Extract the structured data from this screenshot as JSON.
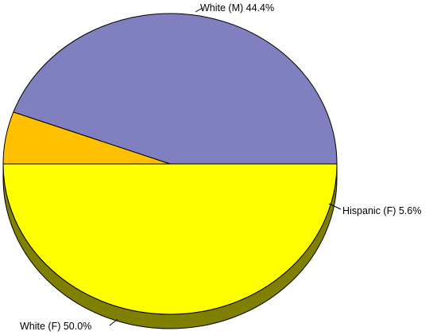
{
  "chart_data": {
    "type": "pie",
    "style": "3d",
    "slices": [
      {
        "label": "White (M)",
        "percent_text": "44.4%",
        "value": 44.4,
        "color": "#8080C0",
        "side_color": "#40408A"
      },
      {
        "label": "Hispanic (F)",
        "percent_text": "5.6%",
        "value": 5.6,
        "color": "#FFC000",
        "side_color": "#8A6A00"
      },
      {
        "label": "White (F)",
        "percent_text": "50.0%",
        "value": 50.0,
        "color": "#FFFF00",
        "side_color": "#808000"
      }
    ],
    "start_angle_deg": 0,
    "direction": "counterclockwise",
    "labels": [
      {
        "slice": 0,
        "text": "White (M) 44.4%"
      },
      {
        "slice": 1,
        "text": "Hispanic (F) 5.6%"
      },
      {
        "slice": 2,
        "text": "White (F) 50.0%"
      }
    ]
  }
}
